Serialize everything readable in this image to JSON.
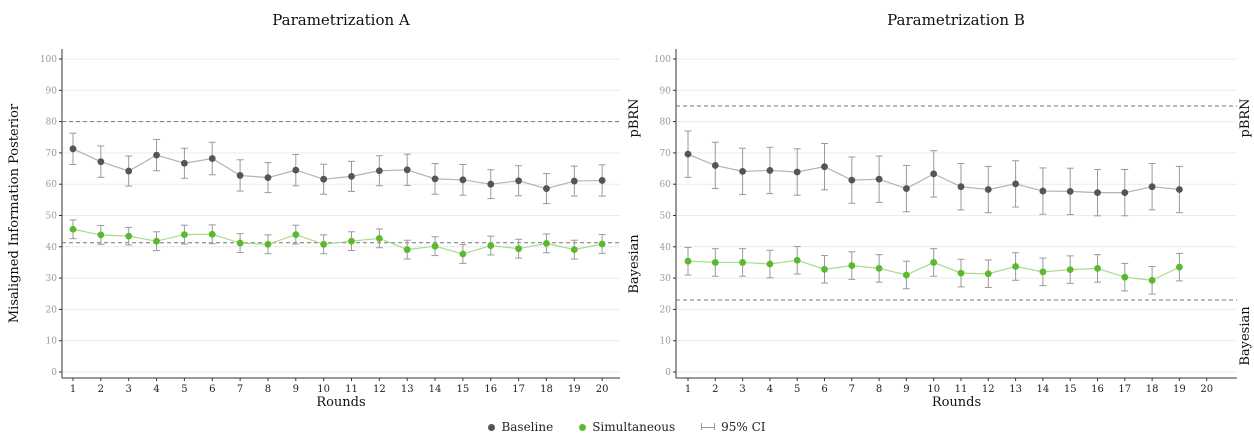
{
  "colors": {
    "baseline": "#555555",
    "simultaneous": "#5cb82d",
    "baseline_line": "#b3b3b3",
    "simultaneous_line": "#a8dc8c",
    "ci": "#9a9a9a",
    "ref_line": "#777777"
  },
  "legend": {
    "baseline": "Baseline",
    "simultaneous": "Simultaneous",
    "ci": "95% CI"
  },
  "chart_data": [
    {
      "type": "line",
      "title": "Parametrization A",
      "xlabel": "Rounds",
      "ylabel": "Misaligned Information Posterior",
      "xlim": [
        1,
        20
      ],
      "x_ticks": [
        1,
        2,
        3,
        4,
        5,
        6,
        7,
        8,
        9,
        10,
        11,
        12,
        13,
        14,
        15,
        16,
        17,
        18,
        19,
        20
      ],
      "ylim": [
        0,
        100
      ],
      "y_ticks": [
        0,
        10,
        20,
        30,
        40,
        50,
        60,
        70,
        80,
        90,
        100
      ],
      "reference_lines": [
        {
          "y": 80,
          "label": ""
        },
        {
          "y": 41.3,
          "label": ""
        }
      ],
      "series": [
        {
          "name": "Baseline",
          "x": [
            1,
            2,
            3,
            4,
            5,
            6,
            7,
            8,
            9,
            10,
            11,
            12,
            13,
            14,
            15,
            16,
            17,
            18,
            19,
            20
          ],
          "values": [
            71.3,
            67.2,
            64.2,
            69.3,
            66.7,
            68.2,
            62.8,
            62.1,
            64.5,
            61.6,
            62.5,
            64.3,
            64.6,
            61.7,
            61.4,
            60.0,
            61.1,
            58.6,
            61.0,
            61.2
          ],
          "ci_low": [
            66.3,
            62.2,
            59.4,
            64.3,
            61.9,
            63.0,
            57.8,
            57.3,
            59.5,
            56.8,
            57.7,
            59.5,
            59.6,
            56.8,
            56.5,
            55.4,
            56.3,
            53.8,
            56.2,
            56.2
          ],
          "ci_high": [
            76.3,
            72.2,
            69.0,
            74.3,
            71.5,
            73.4,
            67.8,
            66.9,
            69.5,
            66.4,
            67.3,
            69.1,
            69.6,
            66.6,
            66.3,
            64.6,
            65.9,
            63.4,
            65.8,
            66.2
          ]
        },
        {
          "name": "Simultaneous",
          "x": [
            1,
            2,
            3,
            4,
            5,
            6,
            7,
            8,
            9,
            10,
            11,
            12,
            13,
            14,
            15,
            16,
            17,
            18,
            19,
            20
          ],
          "values": [
            45.6,
            43.8,
            43.4,
            41.8,
            43.9,
            44.0,
            41.2,
            40.8,
            43.9,
            40.8,
            41.8,
            42.7,
            39.1,
            40.2,
            37.7,
            40.4,
            39.4,
            41.1,
            39.1,
            40.9
          ],
          "ci_low": [
            42.6,
            40.8,
            40.6,
            38.8,
            40.9,
            41.0,
            38.2,
            37.8,
            40.9,
            37.8,
            38.8,
            39.7,
            36.1,
            37.2,
            34.7,
            37.4,
            36.4,
            38.1,
            36.1,
            37.9
          ],
          "ci_high": [
            48.6,
            46.8,
            46.2,
            44.8,
            46.9,
            47.0,
            44.2,
            43.8,
            46.9,
            43.8,
            44.8,
            45.7,
            42.1,
            43.2,
            40.7,
            43.4,
            42.4,
            44.1,
            42.1,
            43.9
          ]
        }
      ]
    },
    {
      "type": "line",
      "title": "Parametrization B",
      "xlabel": "Rounds",
      "ylabel": "",
      "xlim": [
        1,
        20
      ],
      "x_ticks": [
        1,
        2,
        3,
        4,
        5,
        6,
        7,
        8,
        9,
        10,
        11,
        12,
        13,
        14,
        15,
        16,
        17,
        18,
        19,
        20
      ],
      "ylim": [
        0,
        100
      ],
      "y_ticks": [
        0,
        10,
        20,
        30,
        40,
        50,
        60,
        70,
        80,
        90,
        100
      ],
      "reference_lines": [
        {
          "y": 85,
          "label": "pBRN"
        },
        {
          "y": 23,
          "label": "Bayesian"
        }
      ],
      "series": [
        {
          "name": "Baseline",
          "x": [
            1,
            2,
            3,
            4,
            5,
            6,
            7,
            8,
            9,
            10,
            11,
            12,
            13,
            14,
            15,
            16,
            17,
            18,
            19
          ],
          "values": [
            69.6,
            66.0,
            64.1,
            64.4,
            63.9,
            65.6,
            61.3,
            61.6,
            58.6,
            63.3,
            59.2,
            58.3,
            60.1,
            57.8,
            57.7,
            57.3,
            57.3,
            59.2,
            58.3
          ],
          "ci_low": [
            62.2,
            58.6,
            56.7,
            57.0,
            56.5,
            58.2,
            53.9,
            54.2,
            51.2,
            55.9,
            51.8,
            50.9,
            52.7,
            50.4,
            50.3,
            49.9,
            49.9,
            51.8,
            50.9
          ],
          "ci_high": [
            77.0,
            73.4,
            71.5,
            71.8,
            71.3,
            73.0,
            68.7,
            69.0,
            66.0,
            70.7,
            66.6,
            65.7,
            67.5,
            65.2,
            65.1,
            64.7,
            64.7,
            66.6,
            65.7
          ]
        },
        {
          "name": "Simultaneous",
          "x": [
            1,
            2,
            3,
            4,
            5,
            6,
            7,
            8,
            9,
            10,
            11,
            12,
            13,
            14,
            15,
            16,
            17,
            18,
            19
          ],
          "values": [
            35.4,
            35.0,
            35.0,
            34.5,
            35.7,
            32.8,
            34.0,
            33.1,
            31.0,
            35.0,
            31.6,
            31.4,
            33.7,
            32.0,
            32.7,
            33.1,
            30.3,
            29.3,
            33.5
          ],
          "ci_low": [
            31.0,
            30.6,
            30.6,
            30.1,
            31.3,
            28.4,
            29.6,
            28.7,
            26.6,
            30.6,
            27.2,
            27.0,
            29.3,
            27.6,
            28.3,
            28.7,
            25.9,
            24.9,
            29.1
          ],
          "ci_high": [
            39.8,
            39.4,
            39.4,
            38.9,
            40.1,
            37.2,
            38.4,
            37.5,
            35.4,
            39.4,
            36.0,
            35.8,
            38.1,
            36.4,
            37.1,
            37.5,
            34.7,
            33.7,
            37.9
          ]
        }
      ]
    }
  ]
}
